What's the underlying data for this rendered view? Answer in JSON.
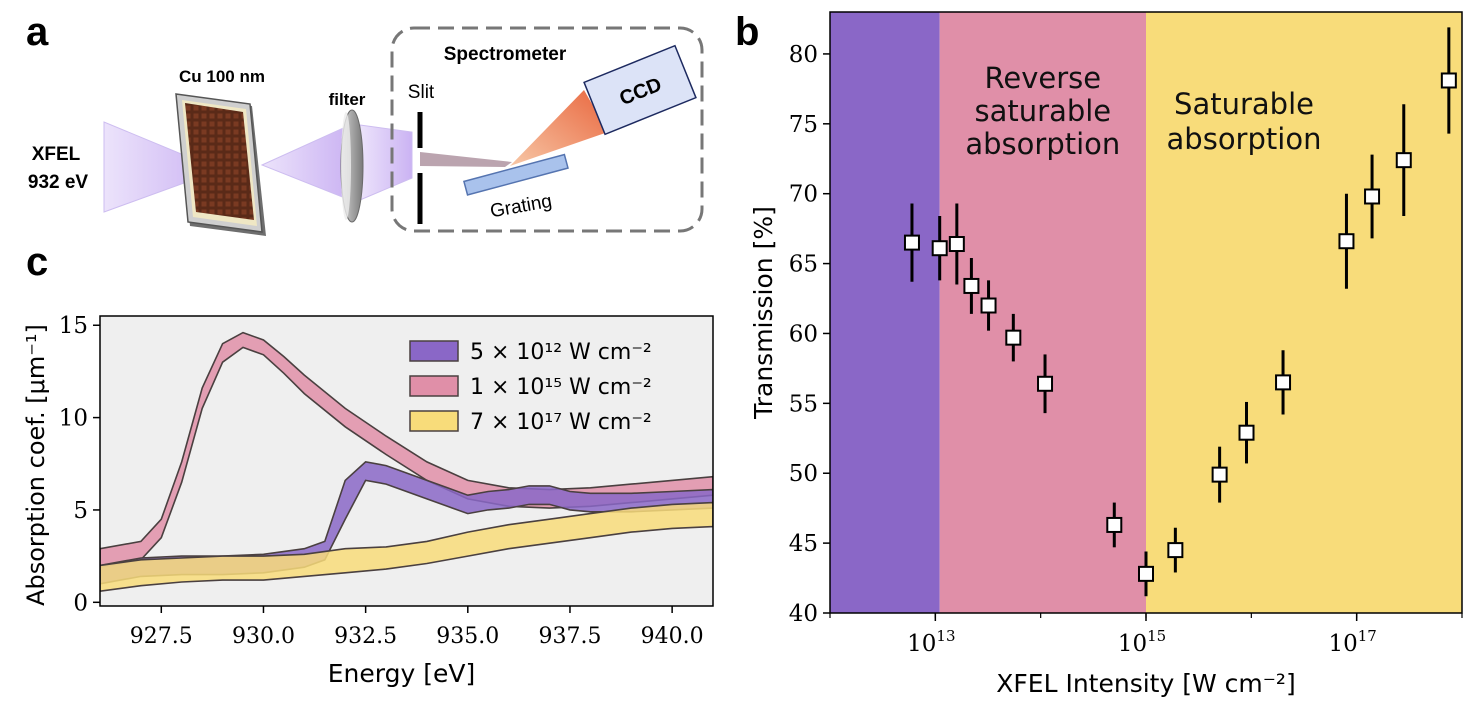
{
  "panel_labels": {
    "a": "a",
    "b": "b",
    "c": "c"
  },
  "schematic": {
    "source_line1": "XFEL",
    "source_line2": "932 eV",
    "sample": "Cu 100 nm",
    "filter": "filter",
    "slit": "Slit",
    "spectrometer": "Spectrometer",
    "detector": "CCD",
    "grating": "Grating"
  },
  "colors": {
    "purple": "#8a67c7",
    "pink": "#e08fa8",
    "yellow": "#f8dc7a",
    "plot_bg": "#efefef"
  },
  "chart_data": [
    {
      "id": "b",
      "type": "scatter",
      "xlabel": "XFEL Intensity [W cm⁻²]",
      "ylabel": "Transmission [%]",
      "xscale": "log",
      "xlim": [
        1000000000000.0,
        1e+18
      ],
      "ylim": [
        40,
        83
      ],
      "x_ticks": [
        {
          "value": 10000000000000.0,
          "base": "10",
          "exp": "13"
        },
        {
          "value": 1000000000000000.0,
          "base": "10",
          "exp": "15"
        },
        {
          "value": 1e+17,
          "base": "10",
          "exp": "17"
        }
      ],
      "y_ticks": [
        40,
        45,
        50,
        55,
        60,
        65,
        70,
        75,
        80
      ],
      "regions": [
        {
          "from": 1000000000000.0,
          "to": 11000000000000.0,
          "color": "#8a67c7",
          "text": []
        },
        {
          "from": 11000000000000.0,
          "to": 1000000000000000.0,
          "color": "#e08fa8",
          "text": [
            "Reverse",
            "saturable",
            "absorption"
          ]
        },
        {
          "from": 1000000000000000.0,
          "to": 1e+18,
          "color": "#f8dc7a",
          "text": [
            "Saturable",
            "absorption"
          ]
        }
      ],
      "points": [
        {
          "x": 6000000000000.0,
          "y": 66.5,
          "err": 2.8
        },
        {
          "x": 11000000000000.0,
          "y": 66.1,
          "err": 2.3
        },
        {
          "x": 16000000000000.0,
          "y": 66.4,
          "err": 2.9
        },
        {
          "x": 22000000000000.0,
          "y": 63.4,
          "err": 2.0
        },
        {
          "x": 32000000000000.0,
          "y": 62.0,
          "err": 1.8
        },
        {
          "x": 55000000000000.0,
          "y": 59.7,
          "err": 1.7
        },
        {
          "x": 110000000000000.0,
          "y": 56.4,
          "err": 2.1
        },
        {
          "x": 500000000000000.0,
          "y": 46.3,
          "err": 1.6
        },
        {
          "x": 1000000000000000.0,
          "y": 42.8,
          "err": 1.6
        },
        {
          "x": 1900000000000000.0,
          "y": 44.5,
          "err": 1.6
        },
        {
          "x": 5000000000000000.0,
          "y": 49.9,
          "err": 2.0
        },
        {
          "x": 9000000000000000.0,
          "y": 52.9,
          "err": 2.2
        },
        {
          "x": 2e+16,
          "y": 56.5,
          "err": 2.3
        },
        {
          "x": 8e+16,
          "y": 66.6,
          "err": 3.4
        },
        {
          "x": 1.4e+17,
          "y": 69.8,
          "err": 3.0
        },
        {
          "x": 2.8e+17,
          "y": 72.4,
          "err": 4.0
        },
        {
          "x": 7.5e+17,
          "y": 78.1,
          "err": 3.8
        }
      ]
    },
    {
      "id": "c",
      "type": "area",
      "xlabel": "Energy [eV]",
      "ylabel": "Absorption coef. [μm⁻¹]",
      "xlim": [
        926,
        941
      ],
      "ylim": [
        -0.2,
        15.5
      ],
      "x_ticks": [
        927.5,
        930.0,
        932.5,
        935.0,
        937.5,
        940.0
      ],
      "y_ticks": [
        0,
        5,
        10,
        15
      ],
      "legend_position": "upper-right",
      "series": [
        {
          "name": "5 × 10¹² W cm⁻²",
          "color": "#8a67c7",
          "x": [
            926,
            927,
            928,
            929,
            930,
            931,
            931.5,
            932,
            932.5,
            933,
            933.5,
            934,
            934.5,
            935,
            935.5,
            936,
            936.5,
            937,
            937.5,
            938,
            939,
            940,
            941
          ],
          "lower": [
            1.0,
            1.4,
            1.5,
            1.5,
            1.6,
            1.9,
            2.3,
            4.5,
            6.6,
            6.4,
            6.0,
            5.6,
            5.2,
            4.8,
            5.0,
            5.1,
            5.3,
            5.3,
            5.0,
            4.9,
            4.9,
            5.0,
            5.1
          ],
          "upper": [
            2.0,
            2.4,
            2.5,
            2.5,
            2.6,
            2.9,
            3.3,
            6.6,
            7.6,
            7.4,
            7.0,
            6.6,
            6.2,
            5.8,
            6.0,
            6.1,
            6.3,
            6.3,
            6.0,
            5.9,
            5.9,
            6.0,
            6.1
          ]
        },
        {
          "name": "1 × 10¹⁵ W cm⁻²",
          "color": "#e08fa8",
          "x": [
            926,
            927,
            927.5,
            928,
            928.5,
            929,
            929.5,
            930,
            930.5,
            931,
            932,
            933,
            934,
            935,
            936,
            937,
            938,
            939,
            940,
            941
          ],
          "lower": [
            1.9,
            2.3,
            3.5,
            6.5,
            10.5,
            13.0,
            13.8,
            13.4,
            12.4,
            11.3,
            9.5,
            8.0,
            6.6,
            5.6,
            5.2,
            5.1,
            5.2,
            5.4,
            5.6,
            5.8
          ],
          "upper": [
            2.9,
            3.3,
            4.5,
            7.6,
            11.6,
            14.0,
            14.6,
            14.2,
            13.3,
            12.3,
            10.5,
            9.0,
            7.6,
            6.6,
            6.2,
            6.1,
            6.2,
            6.4,
            6.6,
            6.8
          ]
        },
        {
          "name": "7 × 10¹⁷ W cm⁻²",
          "color": "#f8dc7a",
          "x": [
            926,
            927,
            928,
            929,
            930,
            931,
            932,
            933,
            934,
            935,
            936,
            937,
            938,
            939,
            940,
            941
          ],
          "lower": [
            0.6,
            0.9,
            1.1,
            1.2,
            1.2,
            1.4,
            1.6,
            1.8,
            2.1,
            2.5,
            2.9,
            3.2,
            3.5,
            3.8,
            4.0,
            4.1
          ],
          "upper": [
            2.0,
            2.3,
            2.4,
            2.5,
            2.5,
            2.6,
            2.9,
            3.0,
            3.3,
            3.8,
            4.2,
            4.5,
            4.8,
            5.1,
            5.3,
            5.4
          ]
        }
      ]
    }
  ]
}
